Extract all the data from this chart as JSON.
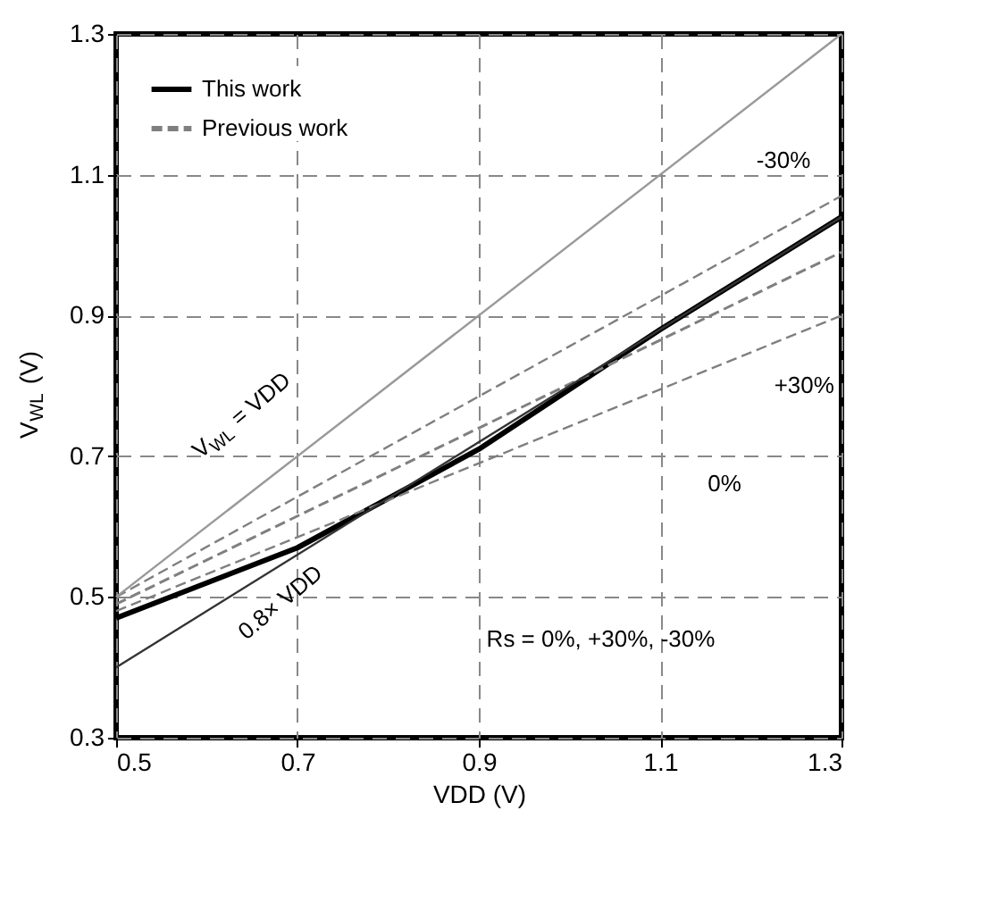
{
  "chart_data": {
    "type": "line",
    "xlabel": "VDD (V)",
    "ylabel": "V$_{WL}$ (V)",
    "xlim": [
      0.5,
      1.3
    ],
    "ylim": [
      0.3,
      1.3
    ],
    "xticks": [
      0.5,
      0.7,
      0.9,
      1.1,
      1.3
    ],
    "yticks": [
      0.3,
      0.5,
      0.7,
      0.9,
      1.1,
      1.3
    ],
    "grid": true,
    "legend": "top left",
    "series": [
      {
        "name": "This work",
        "color": "#000000",
        "line_style": "solid",
        "x": [
          0.5,
          0.7,
          0.9,
          1.1,
          1.3
        ],
        "values": [
          0.47,
          0.57,
          0.71,
          0.88,
          1.04
        ]
      },
      {
        "name": "Previous work",
        "color": "#7f7f7f",
        "line_style": "dashed",
        "x": [
          0.5,
          1.3
        ],
        "values": [
          0.49,
          0.99
        ]
      },
      {
        "color": "#7f7f7f",
        "line_style": "dashed",
        "x": [
          0.5,
          1.3
        ],
        "values": [
          0.5,
          1.07
        ]
      },
      {
        "color": "#7f7f7f",
        "line_style": "dashed",
        "x": [
          0.5,
          1.3
        ],
        "values": [
          0.48,
          0.9
        ]
      },
      {
        "color": "#999999",
        "line_style": "solid",
        "x": [
          0.5,
          1.3
        ],
        "values": [
          0.5,
          1.3
        ]
      },
      {
        "color": "#333333",
        "line_style": "solid",
        "x": [
          0.5,
          1.3
        ],
        "values": [
          0.4,
          1.04
        ]
      }
    ],
    "annotations": [
      "V$_{WL}$ = VDD",
      "0.8× VDD",
      "Rs = 0%, +30%, -30%",
      "-30%",
      "+30%",
      "0%"
    ]
  }
}
